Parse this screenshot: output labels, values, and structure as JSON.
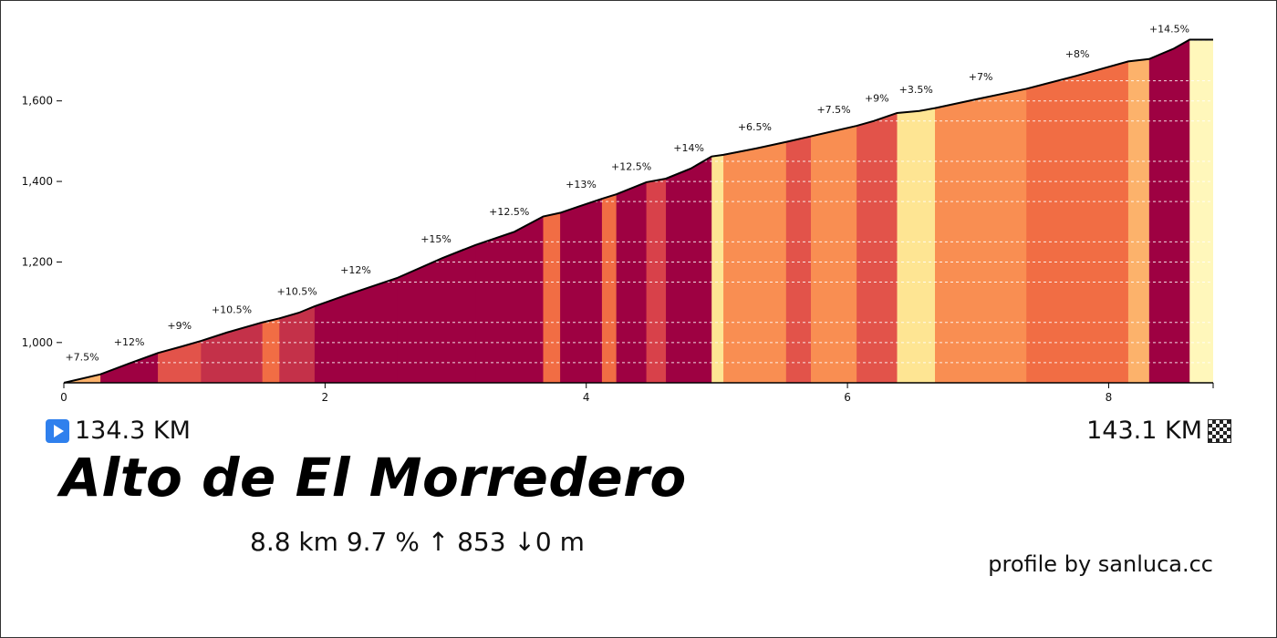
{
  "chart_data": {
    "type": "area",
    "xlim": [
      0,
      8.8
    ],
    "ylim": [
      900,
      1760
    ],
    "x_ticks": [
      0,
      2,
      4,
      6,
      8
    ],
    "x_tick_labels": [
      "0",
      "2",
      "4",
      "6",
      "8"
    ],
    "y_ticks": [
      1000,
      1200,
      1400,
      1600
    ],
    "y_tick_labels": [
      "1,000",
      "1,200",
      "1,400",
      "1,600"
    ],
    "grid": "horizontal dashed",
    "segments": [
      {
        "x0": 0.0,
        "x1": 0.28,
        "grade": 7.5,
        "label": "+7.5%",
        "color": "#fcb26b"
      },
      {
        "x0": 0.28,
        "x1": 0.72,
        "grade": 12,
        "label": "+12%",
        "color": "#9e0142"
      },
      {
        "x0": 0.72,
        "x1": 1.05,
        "grade": 9,
        "label": "+9%",
        "color": "#e2534a"
      },
      {
        "x0": 1.05,
        "x1": 1.52,
        "grade": 10.5,
        "label": "+10.5%",
        "color": "#c43149"
      },
      {
        "x0": 1.52,
        "x1": 1.65,
        "grade": 7.5,
        "label": "",
        "color": "#f16d44"
      },
      {
        "x0": 1.65,
        "x1": 1.92,
        "grade": 10.5,
        "label": "+10.5%",
        "color": "#c43149"
      },
      {
        "x0": 1.92,
        "x1": 2.55,
        "grade": 12,
        "label": "+12%",
        "color": "#9e0142"
      },
      {
        "x0": 2.55,
        "x1": 3.15,
        "grade": 15,
        "label": "+15%",
        "color": "#9e0142"
      },
      {
        "x0": 3.15,
        "x1": 3.67,
        "grade": 12.5,
        "label": "+12.5%",
        "color": "#9e0142"
      },
      {
        "x0": 3.67,
        "x1": 3.8,
        "grade": 7.5,
        "label": "",
        "color": "#f16d44"
      },
      {
        "x0": 3.8,
        "x1": 4.12,
        "grade": 13,
        "label": "+13%",
        "color": "#9e0142"
      },
      {
        "x0": 4.12,
        "x1": 4.23,
        "grade": 7.5,
        "label": "",
        "color": "#f16d44"
      },
      {
        "x0": 4.23,
        "x1": 4.46,
        "grade": 12.5,
        "label": "+12.5%",
        "color": "#9e0142"
      },
      {
        "x0": 4.46,
        "x1": 4.61,
        "grade": 10,
        "label": "",
        "color": "#d8414a"
      },
      {
        "x0": 4.61,
        "x1": 4.96,
        "grade": 14,
        "label": "+14%",
        "color": "#9e0142"
      },
      {
        "x0": 4.96,
        "x1": 5.05,
        "grade": 4,
        "label": "",
        "color": "#fee593"
      },
      {
        "x0": 5.05,
        "x1": 5.53,
        "grade": 6.5,
        "label": "+6.5%",
        "color": "#f98e52"
      },
      {
        "x0": 5.53,
        "x1": 5.72,
        "grade": 9,
        "label": "",
        "color": "#e2534a"
      },
      {
        "x0": 5.72,
        "x1": 6.07,
        "grade": 7.5,
        "label": "+7.5%",
        "color": "#f98e52"
      },
      {
        "x0": 6.07,
        "x1": 6.38,
        "grade": 9,
        "label": "+9%",
        "color": "#e2534a"
      },
      {
        "x0": 6.38,
        "x1": 6.67,
        "grade": 3.5,
        "label": "+3.5%",
        "color": "#fee593"
      },
      {
        "x0": 6.67,
        "x1": 7.37,
        "grade": 7,
        "label": "+7%",
        "color": "#f98e52"
      },
      {
        "x0": 7.37,
        "x1": 8.15,
        "grade": 8,
        "label": "+8%",
        "color": "#f16d44"
      },
      {
        "x0": 8.15,
        "x1": 8.31,
        "grade": 5.5,
        "label": "",
        "color": "#fcb26b"
      },
      {
        "x0": 8.31,
        "x1": 8.62,
        "grade": 14.5,
        "label": "+14.5%",
        "color": "#9e0142"
      },
      {
        "x0": 8.62,
        "x1": 8.8,
        "grade": 0,
        "label": "",
        "color": "#fff7bb"
      }
    ],
    "profile": [
      [
        0.0,
        900
      ],
      [
        0.28,
        921
      ],
      [
        0.5,
        948
      ],
      [
        0.72,
        974
      ],
      [
        0.9,
        990
      ],
      [
        1.05,
        1004
      ],
      [
        1.25,
        1025
      ],
      [
        1.52,
        1050
      ],
      [
        1.65,
        1060
      ],
      [
        1.8,
        1074
      ],
      [
        1.92,
        1090
      ],
      [
        2.2,
        1122
      ],
      [
        2.55,
        1160
      ],
      [
        2.9,
        1210
      ],
      [
        3.15,
        1242
      ],
      [
        3.45,
        1275
      ],
      [
        3.67,
        1313
      ],
      [
        3.8,
        1322
      ],
      [
        4.0,
        1344
      ],
      [
        4.12,
        1357
      ],
      [
        4.23,
        1368
      ],
      [
        4.46,
        1398
      ],
      [
        4.61,
        1407
      ],
      [
        4.8,
        1432
      ],
      [
        4.96,
        1462
      ],
      [
        5.05,
        1466
      ],
      [
        5.3,
        1482
      ],
      [
        5.53,
        1498
      ],
      [
        5.72,
        1512
      ],
      [
        6.07,
        1538
      ],
      [
        6.2,
        1550
      ],
      [
        6.38,
        1570
      ],
      [
        6.55,
        1575
      ],
      [
        6.67,
        1582
      ],
      [
        7.0,
        1605
      ],
      [
        7.37,
        1630
      ],
      [
        7.75,
        1662
      ],
      [
        8.15,
        1698
      ],
      [
        8.31,
        1704
      ],
      [
        8.5,
        1730
      ],
      [
        8.62,
        1752
      ],
      [
        8.8,
        1752
      ]
    ]
  },
  "climb": {
    "start_km": "134.3 KM",
    "end_km": "143.1 KM",
    "name": "Alto de El Morredero",
    "stats": "8.8 km 9.7 %  ↑ 853 ↓0 m",
    "credit": "profile by sanluca.cc"
  },
  "icons": {
    "start": "play-icon",
    "finish": "checkered-flag-icon"
  }
}
